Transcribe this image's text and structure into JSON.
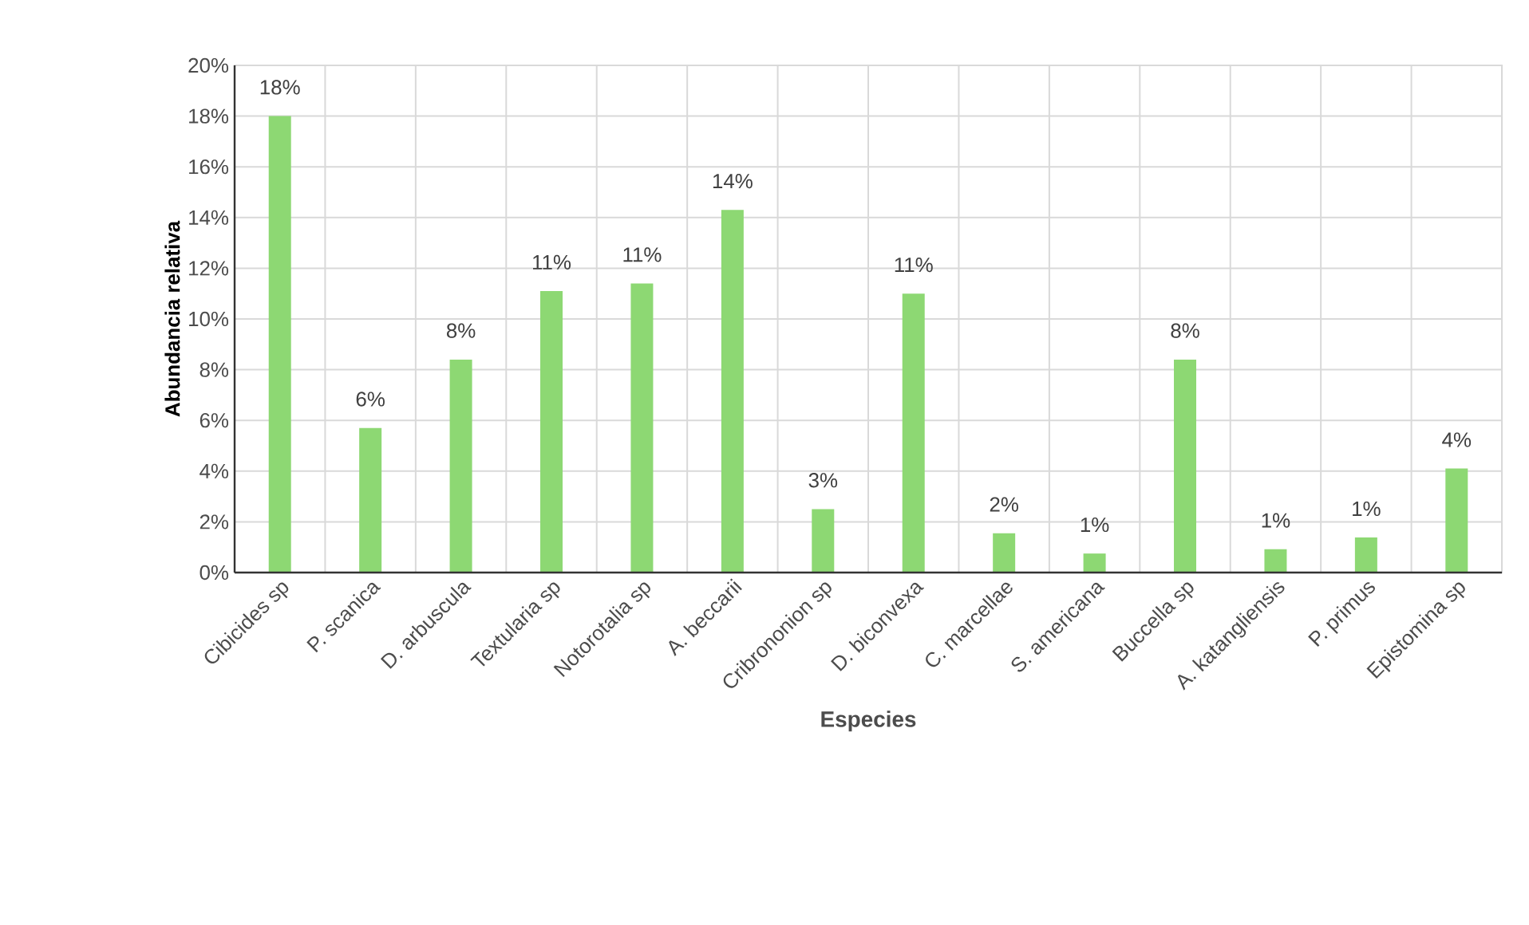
{
  "chart_data": {
    "type": "bar",
    "xlabel": "Especies",
    "ylabel": "Abundancia relativa",
    "categories": [
      "Cibicides sp",
      "P. scanica",
      "D. arbuscula",
      "Textularia sp",
      "Notorotalia sp",
      "A. beccarii",
      "Cribrononion sp",
      "D. biconvexa",
      "C. marcellae",
      "S. americana",
      "Buccella sp",
      "A. katangliensis",
      "P. primus",
      "Epistomina sp"
    ],
    "values": [
      18.0,
      5.7,
      8.4,
      11.1,
      11.4,
      14.3,
      2.5,
      11.0,
      1.55,
      0.75,
      8.4,
      0.92,
      1.38,
      4.1
    ],
    "value_labels": [
      "18%",
      "6%",
      "8%",
      "11%",
      "11%",
      "14%",
      "3%",
      "11%",
      "2%",
      "1%",
      "8%",
      "1%",
      "1%",
      "4%"
    ],
    "color": "#8dd873",
    "ylim": [
      0,
      20
    ],
    "yticks": [
      {
        "value": 0,
        "label": "0%"
      },
      {
        "value": 2,
        "label": "2%"
      },
      {
        "value": 4,
        "label": "4%"
      },
      {
        "value": 6,
        "label": "6%"
      },
      {
        "value": 8,
        "label": "8%"
      },
      {
        "value": 10,
        "label": "10%"
      },
      {
        "value": 12,
        "label": "12%"
      },
      {
        "value": 14,
        "label": "14%"
      },
      {
        "value": 16,
        "label": "16%"
      },
      {
        "value": 18,
        "label": "18%"
      },
      {
        "value": 20,
        "label": "20%"
      }
    ],
    "grid": true
  }
}
